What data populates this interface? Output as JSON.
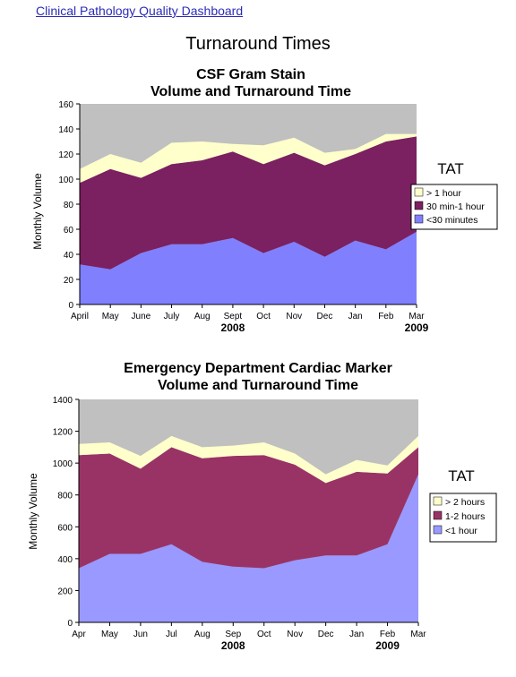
{
  "header": {
    "link_text": "Clinical Pathology Quality Dashboard"
  },
  "page": {
    "title": "Turnaround Times"
  },
  "chart_data": [
    {
      "type": "area",
      "stacked": true,
      "title_line1": "CSF Gram Stain",
      "title_line2": "Volume and Turnaround Time",
      "ylabel": "Monthly Volume",
      "ylim": [
        0,
        160
      ],
      "yticks": [
        0,
        20,
        40,
        60,
        80,
        100,
        120,
        140,
        160
      ],
      "categories": [
        "April",
        "May",
        "June",
        "July",
        "Aug",
        "Sept",
        "Oct",
        "Nov",
        "Dec",
        "Jan",
        "Feb",
        "Mar"
      ],
      "year_labels": [
        {
          "label": "2008",
          "category_index": 5
        },
        {
          "label": "2009",
          "category_index": 11
        }
      ],
      "legend_title": "TAT",
      "legend_placement": "right",
      "background_color": "#c0c0c0",
      "series": [
        {
          "name": "<30 minutes",
          "color": "#8080ff",
          "values": [
            32,
            28,
            41,
            48,
            48,
            53,
            41,
            50,
            38,
            51,
            44,
            58
          ]
        },
        {
          "name": "30 min-1 hour",
          "color": "#7b2060",
          "values": [
            65,
            80,
            60,
            64,
            67,
            69,
            71,
            71,
            73,
            69,
            86,
            76
          ]
        },
        {
          "name": "> 1 hour",
          "color": "#ffffcc",
          "values": [
            11,
            12,
            12,
            17,
            15,
            6,
            15,
            12,
            10,
            4,
            6,
            2
          ]
        }
      ]
    },
    {
      "type": "area",
      "stacked": true,
      "title_line1": "Emergency Department Cardiac Marker",
      "title_line2": "Volume and Turnaround Time",
      "ylabel": "Monthly Volume",
      "ylim": [
        0,
        1400
      ],
      "yticks": [
        0,
        200,
        400,
        600,
        800,
        1000,
        1200,
        1400
      ],
      "categories": [
        "Apr",
        "May",
        "Jun",
        "Jul",
        "Aug",
        "Sep",
        "Oct",
        "Nov",
        "Dec",
        "Jan",
        "Feb",
        "Mar"
      ],
      "year_labels": [
        {
          "label": "2008",
          "category_index": 5
        },
        {
          "label": "2009",
          "category_index": 10
        }
      ],
      "legend_title": "TAT",
      "legend_placement": "right",
      "background_color": "#c0c0c0",
      "series": [
        {
          "name": "<1 hour",
          "color": "#9999ff",
          "values": [
            340,
            430,
            430,
            490,
            380,
            350,
            340,
            390,
            420,
            420,
            490,
            930
          ]
        },
        {
          "name": "1-2 hours",
          "color": "#993366",
          "values": [
            710,
            630,
            535,
            610,
            650,
            695,
            710,
            600,
            455,
            525,
            445,
            170
          ]
        },
        {
          "name": "> 2 hours",
          "color": "#ffffcc",
          "values": [
            70,
            70,
            80,
            70,
            70,
            65,
            80,
            70,
            55,
            75,
            50,
            70
          ]
        }
      ]
    }
  ]
}
